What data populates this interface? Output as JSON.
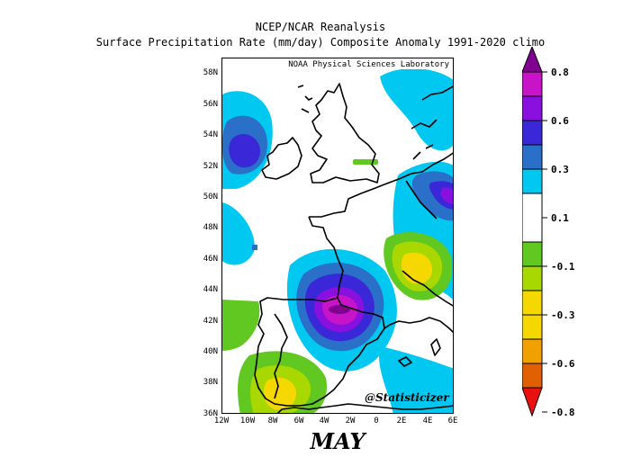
{
  "title_line1": "NCEP/NCAR Reanalysis",
  "title_line2": "Surface Precipitation Rate (mm/day) Composite Anomaly 1991-2020 climo",
  "credit": "NOAA Physical Sciences Laboratory",
  "handle": "@Statisticizer",
  "month": "MAY",
  "map": {
    "lon_range": [
      -12,
      6
    ],
    "lat_range": [
      36,
      59
    ],
    "lat_labels": [
      "58N",
      "56N",
      "54N",
      "52N",
      "50N",
      "48N",
      "46N",
      "44N",
      "42N",
      "40N",
      "38N",
      "36N"
    ],
    "lon_labels": [
      "12W",
      "10W",
      "8W",
      "6W",
      "4W",
      "2W",
      "0",
      "2E",
      "4E",
      "6E"
    ]
  },
  "colorbar": {
    "labels": [
      "0.8",
      "0.6",
      "0.3",
      "0.1",
      "-0.1",
      "-0.3",
      "-0.6",
      "-0.8"
    ],
    "colors": {
      "c1": "#e06000",
      "c2": "#f0a000",
      "c3": "#f5d800",
      "c4": "#a8d800",
      "c5": "#60c820",
      "c6": "#ffffff",
      "c7": "#00c8f0",
      "c8": "#2a70c8",
      "c9": "#3a28d8",
      "c10": "#8a10e0",
      "c11": "#c814c8",
      "c12": "#800090"
    }
  }
}
